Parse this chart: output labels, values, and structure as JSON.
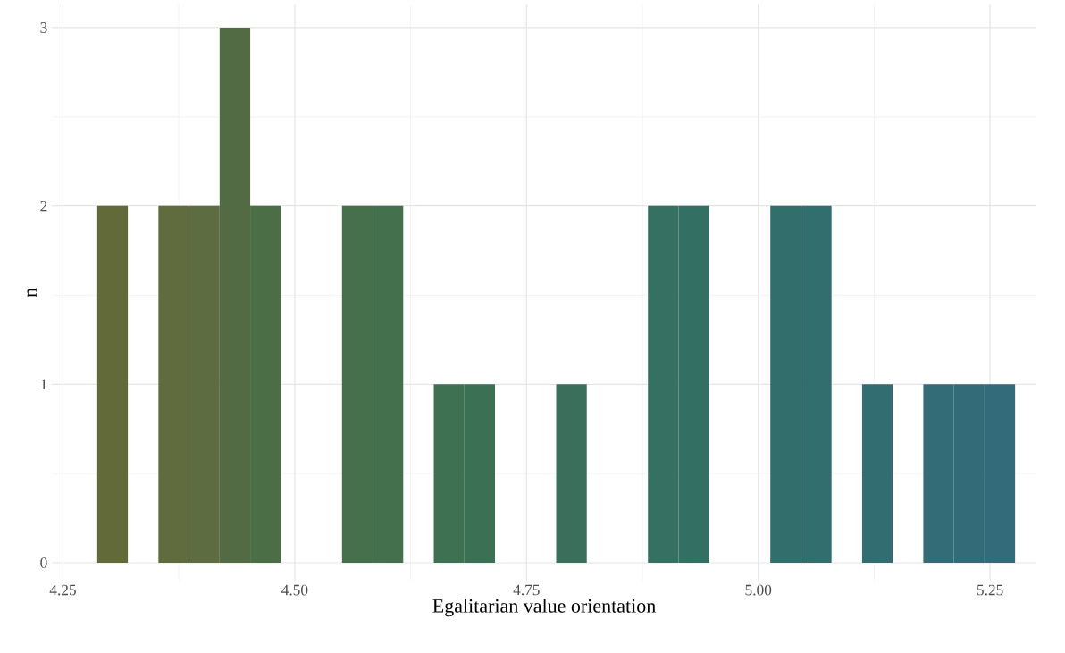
{
  "chart_data": {
    "type": "histogram",
    "xlabel": "Egalitarian value orientation",
    "ylabel": "n",
    "bins": [
      4.287,
      4.32,
      4.353,
      4.386,
      4.419,
      4.452,
      4.485,
      4.518,
      4.551,
      4.584,
      4.617,
      4.65,
      4.683,
      4.716,
      4.749,
      4.782,
      4.815,
      4.848,
      4.881,
      4.914,
      4.947,
      4.98,
      5.013,
      5.046,
      5.079,
      5.112,
      5.145,
      5.178,
      5.211,
      5.244,
      5.277
    ],
    "values": [
      2,
      0,
      2,
      2,
      3,
      2,
      0,
      0,
      2,
      2,
      0,
      1,
      1,
      0,
      0,
      1,
      0,
      0,
      2,
      2,
      0,
      0,
      2,
      2,
      0,
      1,
      0,
      1,
      1,
      1
    ],
    "colors": [
      "#636a3a",
      "#616b3c",
      "#606b3e",
      "#5e6c41",
      "#536b44",
      "#4b6e47",
      "#596e47",
      "#576e4a",
      "#466f4c",
      "#44704e",
      "#526f50",
      "#3e7052",
      "#3c7055",
      "#4d7057",
      "#4c7059",
      "#3a705b",
      "#48705d",
      "#477060",
      "#357062",
      "#346f64",
      "#426f66",
      "#406f68",
      "#326e6b",
      "#326e6d",
      "#3b6d6f",
      "#316d71",
      "#386c73",
      "#336c76",
      "#336b78",
      "#336b7a"
    ],
    "xlim": [
      4.238,
      5.3
    ],
    "ylim": [
      -0.1,
      3.13
    ],
    "xticks": [
      {
        "value": 4.25,
        "label": "4.25"
      },
      {
        "value": 4.5,
        "label": "4.50"
      },
      {
        "value": 4.75,
        "label": "4.75"
      },
      {
        "value": 5.0,
        "label": "5.00"
      },
      {
        "value": 5.25,
        "label": "5.25"
      }
    ],
    "yticks": [
      0,
      1,
      2,
      3
    ],
    "grid": true
  }
}
